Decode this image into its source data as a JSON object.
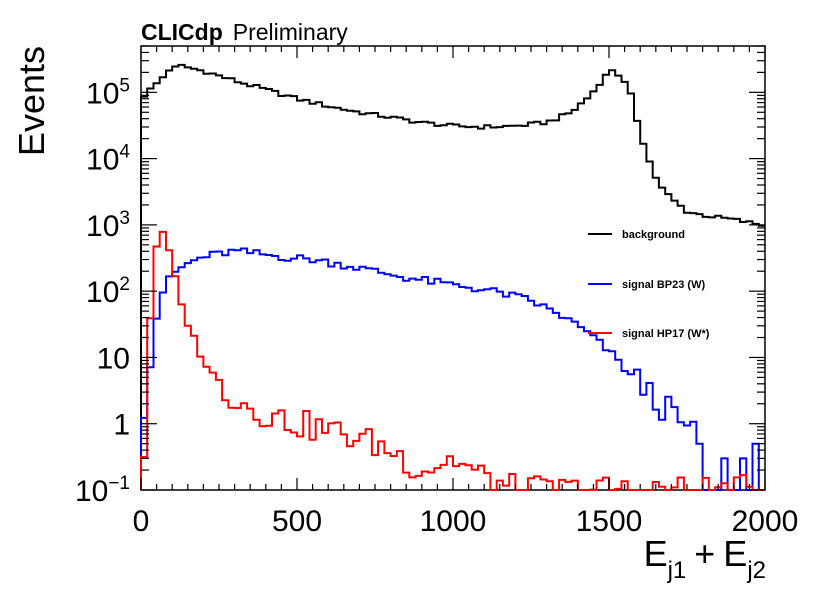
{
  "chart_data": {
    "type": "line",
    "style": "step-histogram",
    "yscale": "log",
    "experiment": "CLICdp",
    "experiment_status": "Preliminary",
    "xlabel": "E_j1 + E_j2",
    "xlabel_parts": {
      "e1": "E",
      "sub1": "j1",
      "plus": "+",
      "e2": "E",
      "sub2": "j2"
    },
    "ylabel": "Events",
    "xlim": [
      0,
      2000
    ],
    "ylim": [
      0.1,
      500000
    ],
    "x_ticks": [
      {
        "value": 0,
        "label": "0"
      },
      {
        "value": 500,
        "label": "500"
      },
      {
        "value": 1000,
        "label": "1000"
      },
      {
        "value": 1500,
        "label": "1500"
      },
      {
        "value": 2000,
        "label": "2000"
      }
    ],
    "y_ticks": [
      {
        "value": 0.1,
        "base": "10",
        "exp": "−1"
      },
      {
        "value": 1,
        "base": "1",
        "exp": ""
      },
      {
        "value": 10,
        "base": "10",
        "exp": ""
      },
      {
        "value": 100,
        "base": "10",
        "exp": "2"
      },
      {
        "value": 1000,
        "base": "10",
        "exp": "3"
      },
      {
        "value": 10000,
        "base": "10",
        "exp": "4"
      },
      {
        "value": 100000,
        "base": "10",
        "exp": "5"
      }
    ],
    "legend_position": "center-right",
    "bin_width": 20,
    "series": [
      {
        "name": "background",
        "color": "#000000",
        "knots": [
          [
            10,
            90000
          ],
          [
            60,
            150000
          ],
          [
            90,
            220000
          ],
          [
            130,
            250000
          ],
          [
            200,
            210000
          ],
          [
            300,
            150000
          ],
          [
            400,
            110000
          ],
          [
            500,
            80000
          ],
          [
            600,
            62000
          ],
          [
            700,
            50000
          ],
          [
            800,
            42000
          ],
          [
            900,
            35000
          ],
          [
            1000,
            31000
          ],
          [
            1100,
            30000
          ],
          [
            1200,
            31000
          ],
          [
            1300,
            35000
          ],
          [
            1380,
            50000
          ],
          [
            1440,
            90000
          ],
          [
            1480,
            160000
          ],
          [
            1510,
            220000
          ],
          [
            1540,
            170000
          ],
          [
            1570,
            90000
          ],
          [
            1600,
            25000
          ],
          [
            1630,
            9000
          ],
          [
            1660,
            4000
          ],
          [
            1700,
            2500
          ],
          [
            1750,
            1600
          ],
          [
            1800,
            1400
          ],
          [
            1900,
            1200
          ],
          [
            1990,
            1000
          ]
        ]
      },
      {
        "name": "signal BP23 (W)",
        "color": "#0000ff",
        "knots": [
          [
            10,
            2
          ],
          [
            30,
            8
          ],
          [
            50,
            40
          ],
          [
            70,
            100
          ],
          [
            100,
            180
          ],
          [
            150,
            260
          ],
          [
            200,
            330
          ],
          [
            300,
            400
          ],
          [
            350,
            380
          ],
          [
            450,
            330
          ],
          [
            550,
            300
          ],
          [
            650,
            250
          ],
          [
            750,
            200
          ],
          [
            850,
            160
          ],
          [
            950,
            135
          ],
          [
            1050,
            115
          ],
          [
            1150,
            95
          ],
          [
            1250,
            72
          ],
          [
            1300,
            55
          ],
          [
            1350,
            42
          ],
          [
            1400,
            30
          ],
          [
            1440,
            22
          ],
          [
            1480,
            15
          ],
          [
            1520,
            10
          ],
          [
            1560,
            6
          ],
          [
            1600,
            4
          ],
          [
            1640,
            2.5
          ],
          [
            1680,
            1.7
          ],
          [
            1720,
            1.2
          ],
          [
            1750,
            0.8
          ],
          [
            1780,
            0.6
          ]
        ],
        "tail": [
          [
            1800,
            0.3
          ],
          [
            1820,
            0.1
          ],
          [
            1840,
            0.1
          ],
          [
            1860,
            0.1
          ],
          [
            1880,
            0.3
          ],
          [
            1900,
            0.1
          ],
          [
            1920,
            0.1
          ],
          [
            1940,
            0.3
          ],
          [
            1960,
            0.1
          ],
          [
            1980,
            0.5
          ],
          [
            2000,
            0.1
          ]
        ]
      },
      {
        "name": "signal HP17 (W*)",
        "color": "#ff0000",
        "knots": [
          [
            10,
            0.4
          ],
          [
            30,
            40
          ],
          [
            50,
            500
          ],
          [
            70,
            700
          ],
          [
            90,
            400
          ],
          [
            110,
            150
          ],
          [
            130,
            60
          ],
          [
            160,
            25
          ],
          [
            200,
            9
          ],
          [
            250,
            4
          ],
          [
            300,
            2.5
          ],
          [
            350,
            1.8
          ],
          [
            420,
            1.3
          ],
          [
            500,
            1
          ],
          [
            600,
            0.8
          ],
          [
            700,
            0.6
          ],
          [
            800,
            0.4
          ],
          [
            900,
            0.2
          ],
          [
            1000,
            0.3
          ],
          [
            1100,
            0.15
          ],
          [
            1200,
            0.1
          ],
          [
            1300,
            0.1
          ],
          [
            2000,
            0.1
          ]
        ]
      }
    ]
  }
}
